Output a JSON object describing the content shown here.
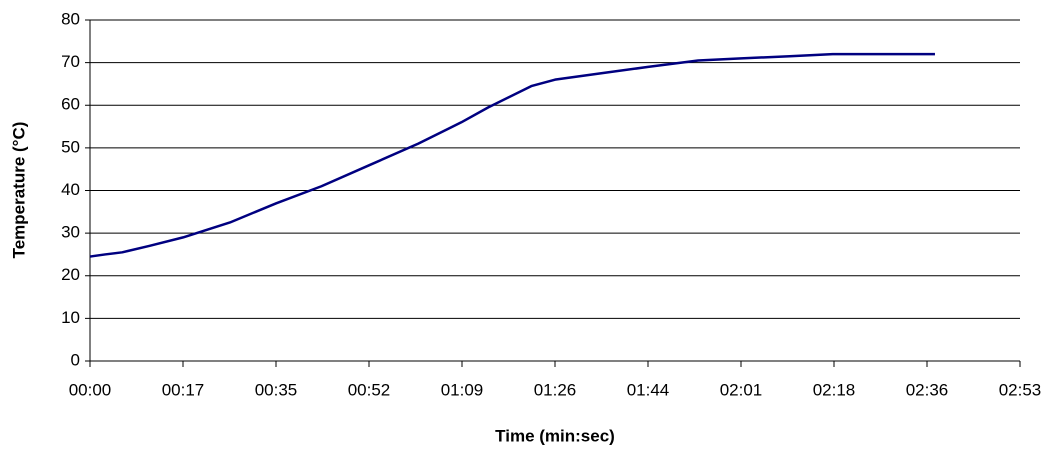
{
  "chart_data": {
    "type": "line",
    "xlabel": "Time (min:sec)",
    "ylabel": "Temperature (°C)",
    "x": [
      0,
      2.8,
      6,
      11,
      17.3,
      26,
      34.6,
      43,
      52,
      61,
      69,
      74,
      82,
      86.4,
      95,
      103.7,
      113,
      121,
      130,
      138,
      157
    ],
    "series": [
      {
        "name": "Temperature",
        "color": "#000080",
        "values": [
          24.5,
          25,
          25.5,
          27,
          29,
          32.5,
          37,
          41,
          46,
          51,
          56,
          59.5,
          64.5,
          66,
          67.5,
          69,
          70.5,
          71,
          71.5,
          72,
          72
        ]
      }
    ],
    "xlim": [
      0,
      172.8
    ],
    "xticks": [
      {
        "value": 0,
        "label": "00:00"
      },
      {
        "value": 17.28,
        "label": "00:17"
      },
      {
        "value": 34.56,
        "label": "00:35"
      },
      {
        "value": 51.84,
        "label": "00:52"
      },
      {
        "value": 69.12,
        "label": "01:09"
      },
      {
        "value": 86.4,
        "label": "01:26"
      },
      {
        "value": 103.68,
        "label": "01:44"
      },
      {
        "value": 120.96,
        "label": "02:01"
      },
      {
        "value": 138.24,
        "label": "02:18"
      },
      {
        "value": 155.52,
        "label": "02:36"
      },
      {
        "value": 172.8,
        "label": "02:53"
      }
    ],
    "ylim": [
      0,
      80
    ],
    "yticks": [
      0,
      10,
      20,
      30,
      40,
      50,
      60,
      70,
      80
    ],
    "grid": true
  }
}
